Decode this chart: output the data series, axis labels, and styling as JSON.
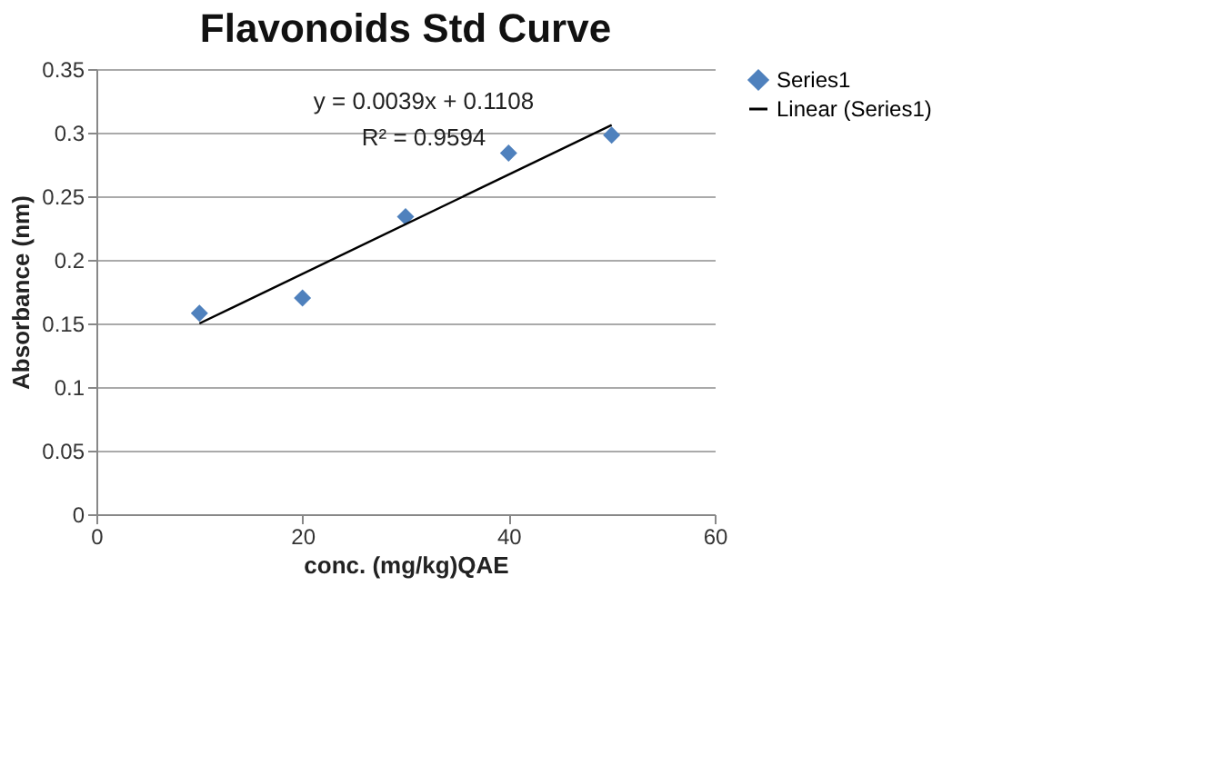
{
  "chart_data": {
    "type": "scatter",
    "title": "Flavonoids Std Curve",
    "xlabel": "conc. (mg/kg)QAE",
    "ylabel": "Absorbance  (nm)",
    "series": [
      {
        "name": "Series1",
        "marker": "diamond",
        "color": "#4f81bd",
        "x": [
          10,
          20,
          30,
          40,
          50
        ],
        "values": [
          0.158,
          0.17,
          0.234,
          0.284,
          0.298
        ]
      },
      {
        "name": "Linear (Series1)",
        "type": "line",
        "marker": "none",
        "color": "#000000",
        "x": [
          10,
          50
        ],
        "values": [
          0.15,
          0.306
        ]
      }
    ],
    "annotations": [
      "y = 0.0039x + 0.1108",
      "R² = 0.9594"
    ],
    "xlim": [
      0,
      60
    ],
    "xticks": [
      0,
      20,
      40,
      60
    ],
    "ylim": [
      0,
      0.35
    ],
    "yticks": [
      0,
      0.05,
      0.1,
      0.15,
      0.2,
      0.25,
      0.3,
      0.35
    ],
    "grid": "y",
    "legend": "right",
    "line_style": "solid"
  }
}
